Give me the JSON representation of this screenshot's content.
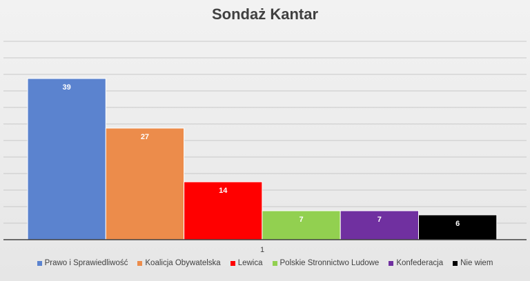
{
  "chart_data": {
    "type": "bar",
    "title": "Sondaż Kantar",
    "categories": [
      "1"
    ],
    "series": [
      {
        "name": "Prawo i Sprawiedliwość",
        "values": [
          39
        ],
        "color": "#5b83cf"
      },
      {
        "name": "Koalicja Obywatelska",
        "values": [
          27
        ],
        "color": "#ec8c4b"
      },
      {
        "name": "Lewica",
        "values": [
          14
        ],
        "color": "#ff0000"
      },
      {
        "name": "Polskie Stronnictwo Ludowe",
        "values": [
          7
        ],
        "color": "#92d050"
      },
      {
        "name": "Konfederacja",
        "values": [
          7
        ],
        "color": "#7030a0"
      },
      {
        "name": "Nie wiem",
        "values": [
          6
        ],
        "color": "#000000"
      }
    ],
    "ylim": [
      0,
      50
    ],
    "y_gridline_step": 4,
    "xlabel": "",
    "ylabel": "",
    "grid": true,
    "data_labels": true,
    "legend_position": "bottom"
  }
}
